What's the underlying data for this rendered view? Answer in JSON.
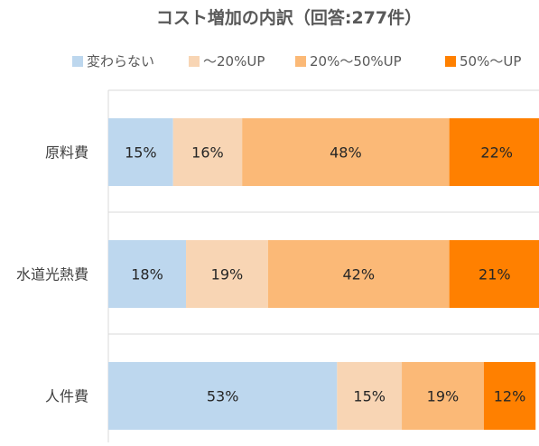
{
  "chart_data": {
    "type": "bar",
    "orientation": "horizontal",
    "stacked": true,
    "percent": true,
    "title": "コスト増加の内訳（回答:277件）",
    "categories": [
      "原料費",
      "水道光熱費",
      "人件費"
    ],
    "series": [
      {
        "name": "変わらない",
        "color": "#bdd7ee",
        "values": [
          15,
          18,
          53
        ],
        "labels": [
          "15%",
          "18%",
          "53%"
        ]
      },
      {
        "name": "～20%UP",
        "color": "#f8d5b4",
        "values": [
          16,
          19,
          15
        ],
        "labels": [
          "16%",
          "19%",
          "15%"
        ]
      },
      {
        "name": "20%～50%UP",
        "color": "#fbb977",
        "values": [
          48,
          42,
          19
        ],
        "labels": [
          "48%",
          "42%",
          "19%"
        ]
      },
      {
        "name": "50%～UP",
        "color": "#ff8000",
        "values": [
          22,
          21,
          12
        ],
        "labels": [
          "22%",
          "21%",
          "12%"
        ]
      }
    ],
    "xlim": [
      0,
      100
    ],
    "legend_position": "top",
    "grid": {
      "horizontal_separators": true
    }
  }
}
